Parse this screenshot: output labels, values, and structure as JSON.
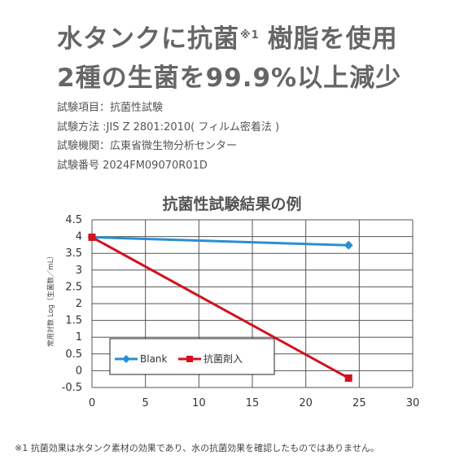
{
  "headline": {
    "line1_main": "水タンクに抗菌",
    "line1_mark": "※1",
    "line1_rest": "樹脂を使用",
    "line2": "2種の生菌を99.9%以上減少"
  },
  "specs": [
    "試験項目：抗菌性試験",
    "試験方法 :JIS Z 2801:2010( フィルム密着法 )",
    "試験機関：広東省微生物分析センター",
    "試験番号 2024FM09070R01D"
  ],
  "footnote": "※1 抗菌効果は水タンク素材の効果であり、水の抗菌効果を確認したものではありません。",
  "colors": {
    "blank": "#2a8fd2",
    "antibacterial": "#d2121f",
    "grid": "#555555"
  },
  "chart_data": {
    "type": "line",
    "title": "抗菌性試験結果の例",
    "xlabel": "",
    "ylabel": "常用対数 Log（生菌数／mL）",
    "xlim": [
      0,
      30
    ],
    "ylim": [
      -0.5,
      4.5
    ],
    "xticks": [
      "0",
      "5",
      "10",
      "15",
      "20",
      "25",
      "30"
    ],
    "yticks": [
      "4.5",
      "4",
      "3.5",
      "3",
      "2.5",
      "2",
      "1.5",
      "1",
      "0.5",
      "0",
      "-0.5"
    ],
    "grid": true,
    "legend_position": "lower-left",
    "series": [
      {
        "name": "Blank",
        "marker": "diamond",
        "x": [
          0,
          24
        ],
        "y": [
          3.98,
          3.74
        ]
      },
      {
        "name": "抗菌剤入",
        "marker": "square",
        "x": [
          0,
          24
        ],
        "y": [
          3.98,
          -0.22
        ]
      }
    ]
  }
}
